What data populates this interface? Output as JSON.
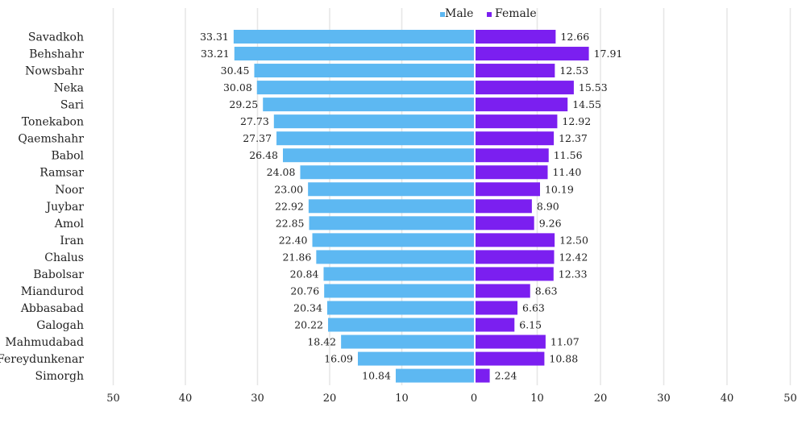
{
  "chart_data": {
    "type": "bar",
    "orientation": "horizontal-butterfly",
    "title": "",
    "xlabel": "",
    "ylabel": "",
    "categories": [
      "Savadkoh",
      "Behshahr",
      "Nowsbahr",
      "Neka",
      "Sari",
      "Tonekabon",
      "Qaemshahr",
      "Babol",
      "Ramsar",
      "Noor",
      "Juybar",
      "Amol",
      "Iran",
      "Chalus",
      "Babolsar",
      "Miandurod",
      "Abbasabad",
      "Galogah",
      "Mahmudabad",
      "Fereydunkenar",
      "Simorgh"
    ],
    "series": [
      {
        "name": "Male",
        "color": "#5db8f2",
        "direction": "left",
        "values": [
          33.31,
          33.21,
          30.45,
          30.08,
          29.25,
          27.73,
          27.37,
          26.48,
          24.08,
          23.0,
          22.92,
          22.85,
          22.4,
          21.86,
          20.84,
          20.76,
          20.34,
          20.22,
          18.42,
          16.09,
          10.84
        ],
        "labels": [
          "33.31",
          "33.21",
          "30.45",
          "30.08",
          "29.25",
          "27.73",
          "27.37",
          "26.48",
          "24.08",
          "23.00",
          "22.92",
          "22.85",
          "22.40",
          "21.86",
          "20.84",
          "20.76",
          "20.34",
          "20.22",
          "18.42",
          "16.09",
          "10.84"
        ]
      },
      {
        "name": "Female",
        "color": "#7b1ff0",
        "direction": "right",
        "values": [
          12.66,
          17.91,
          12.53,
          15.53,
          14.55,
          12.92,
          12.37,
          11.56,
          11.4,
          10.19,
          8.9,
          9.26,
          12.5,
          12.42,
          12.33,
          8.63,
          6.63,
          6.15,
          11.07,
          10.88,
          2.24
        ],
        "labels": [
          "12.66",
          "17.91",
          "12.53",
          "15.53",
          "14.55",
          "12.92",
          "12.37",
          "11.56",
          "11.40",
          "10.19",
          "8.90",
          "9.26",
          "12.50",
          "12.42",
          "12.33",
          "8.63",
          "6.63",
          "6.15",
          "11.07",
          "10.88",
          "2.24"
        ]
      }
    ],
    "xlim_left": [
      0,
      50
    ],
    "xlim_right": [
      0,
      50
    ],
    "ticks_left": [
      "50",
      "40",
      "30",
      "20",
      "10"
    ],
    "ticks_right": [
      "0",
      "10",
      "20",
      "30",
      "40",
      "50"
    ],
    "tick_values_left": [
      50,
      40,
      30,
      20,
      10
    ],
    "tick_values_right": [
      0,
      10,
      20,
      30,
      40,
      50
    ],
    "grid": true,
    "legend": {
      "position": "top-center",
      "entries": [
        "Male",
        "Female"
      ]
    }
  }
}
